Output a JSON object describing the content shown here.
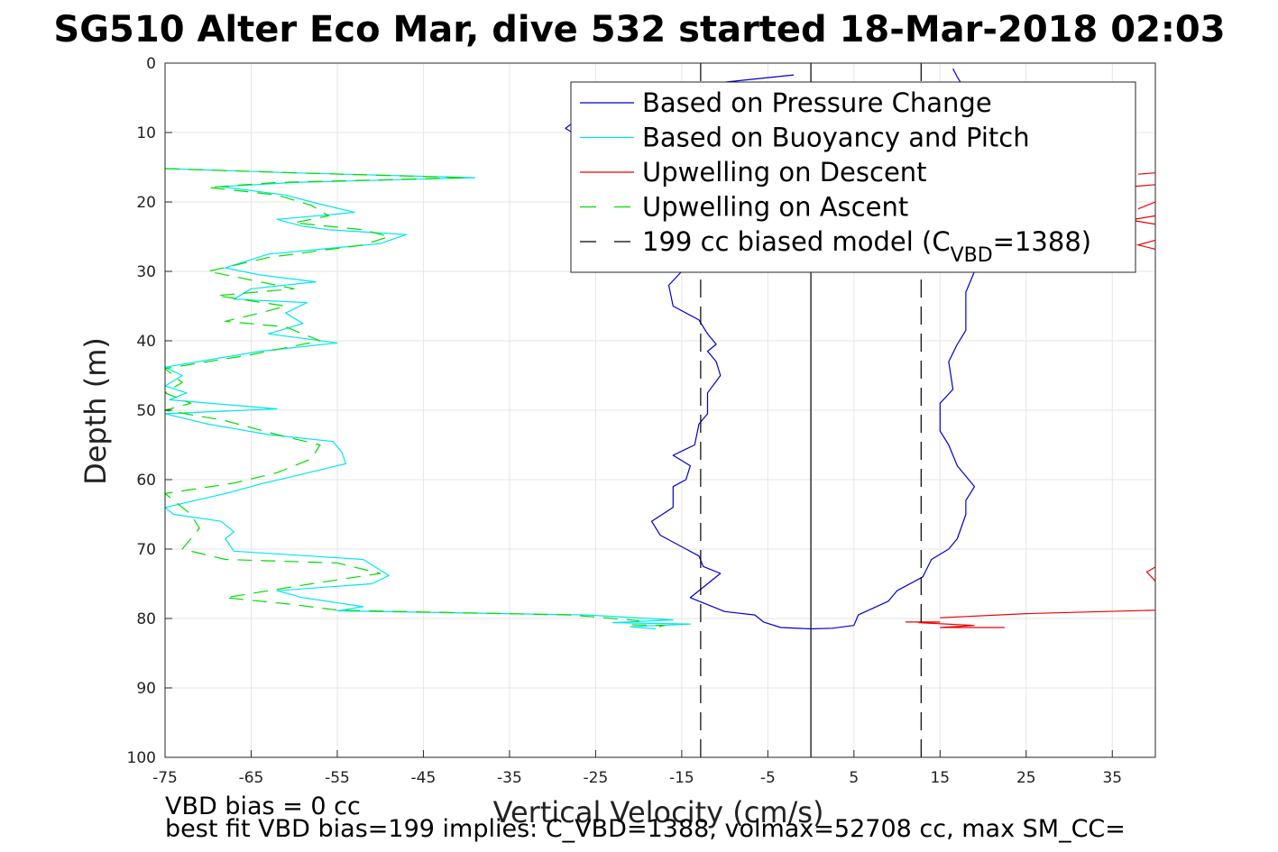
{
  "chart_data": {
    "type": "line",
    "title": "SG510 Alter Eco Mar, dive 532 started 18-Mar-2018 02:03",
    "xlabel": "Vertical Velocity (cm/s)",
    "ylabel": "Depth (m)",
    "xlim": [
      -75,
      40
    ],
    "ylim": [
      0,
      100
    ],
    "y_reversed": true,
    "grid": true,
    "legend_position": "top-right",
    "x_ticks": [
      -75,
      -65,
      -55,
      -45,
      -35,
      -25,
      -15,
      -5,
      5,
      15,
      25,
      35
    ],
    "y_ticks": [
      0,
      10,
      20,
      30,
      40,
      50,
      60,
      70,
      80,
      90,
      100
    ],
    "legend": [
      {
        "text": "Based on Pressure Change",
        "color": "#0000cc",
        "dash": "solid"
      },
      {
        "text": "Based on Buoyancy and Pitch",
        "color": "#00e5ee",
        "dash": "solid"
      },
      {
        "text": "Upwelling on Descent",
        "color": "#ee0000",
        "dash": "solid"
      },
      {
        "text": "Upwelling on Ascent",
        "color": "#00dd00",
        "dash": "dashed"
      },
      {
        "text": "199 cc biased model (C",
        "sub": "VBD",
        "suffix": "=1388)",
        "color": "#000000",
        "dash": "dashed"
      }
    ],
    "series": [
      {
        "name": "Based on Pressure Change",
        "color": "#0000cc",
        "dash": "solid",
        "points": [
          [
            -2,
            1.7
          ],
          [
            -12,
            3
          ],
          [
            -20,
            5
          ],
          [
            -26,
            7
          ],
          [
            -28.5,
            9.4
          ],
          [
            -25,
            12
          ],
          [
            -20,
            15
          ],
          [
            -16,
            22
          ],
          [
            -15,
            30
          ],
          [
            -16.5,
            32
          ],
          [
            -16,
            35
          ],
          [
            -13,
            37
          ],
          [
            -12,
            39
          ],
          [
            -11,
            40.5
          ],
          [
            -12,
            41.5
          ],
          [
            -11,
            43
          ],
          [
            -10.5,
            45
          ],
          [
            -12,
            47.5
          ],
          [
            -12,
            50.5
          ],
          [
            -13,
            52
          ],
          [
            -13.5,
            55
          ],
          [
            -16,
            56.5
          ],
          [
            -14,
            58
          ],
          [
            -14.5,
            60
          ],
          [
            -16,
            61
          ],
          [
            -16,
            64
          ],
          [
            -18.5,
            66
          ],
          [
            -17.5,
            68
          ],
          [
            -13,
            71
          ],
          [
            -12.5,
            72.5
          ],
          [
            -10.5,
            73.5
          ],
          [
            -14,
            77
          ],
          [
            -10,
            79
          ],
          [
            -6.5,
            79.5
          ],
          [
            -5.5,
            80.5
          ],
          [
            -3.5,
            81.3
          ],
          [
            0,
            81.5
          ],
          [
            2.5,
            81.4
          ],
          [
            5,
            81
          ],
          [
            5.5,
            79.5
          ],
          [
            9,
            77.5
          ],
          [
            10,
            76
          ],
          [
            13,
            74
          ],
          [
            14,
            71.5
          ],
          [
            16,
            70
          ],
          [
            17,
            68.5
          ],
          [
            18,
            65
          ],
          [
            18,
            63
          ],
          [
            19,
            61
          ],
          [
            17,
            58
          ],
          [
            16,
            55
          ],
          [
            15,
            53
          ],
          [
            15,
            49
          ],
          [
            16.5,
            47
          ],
          [
            16,
            43
          ],
          [
            17,
            40.5
          ],
          [
            18,
            38.5
          ],
          [
            18,
            33
          ],
          [
            19,
            30
          ],
          [
            18.5,
            28
          ],
          [
            18,
            25
          ],
          [
            17.5,
            20
          ],
          [
            17,
            15
          ],
          [
            18,
            10
          ],
          [
            18.5,
            5
          ],
          [
            17,
            2
          ],
          [
            16.5,
            0.8
          ]
        ]
      },
      {
        "name": "Based on Buoyancy and Pitch",
        "color": "#00e5ee",
        "dash": "solid",
        "points": [
          [
            -75,
            15.2
          ],
          [
            -60,
            15.8
          ],
          [
            -39,
            16.5
          ],
          [
            -60,
            17.2
          ],
          [
            -68.5,
            17.8
          ],
          [
            -61,
            19
          ],
          [
            -58,
            20
          ],
          [
            -53,
            21.5
          ],
          [
            -62,
            22.5
          ],
          [
            -59,
            23.5
          ],
          [
            -56,
            24
          ],
          [
            -47,
            24.7
          ],
          [
            -50,
            26
          ],
          [
            -63,
            27.5
          ],
          [
            -68,
            29.5
          ],
          [
            -64,
            30.5
          ],
          [
            -57.5,
            31.5
          ],
          [
            -65,
            32.5
          ],
          [
            -67,
            34
          ],
          [
            -58.5,
            34.5
          ],
          [
            -61,
            36
          ],
          [
            -59,
            37.5
          ],
          [
            -63,
            39
          ],
          [
            -55,
            40.3
          ],
          [
            -64,
            41.5
          ],
          [
            -75,
            43.8
          ],
          [
            -73,
            45
          ],
          [
            -75,
            46.5
          ],
          [
            -72.5,
            47.5
          ],
          [
            -74.5,
            48.5
          ],
          [
            -62,
            49.8
          ],
          [
            -75,
            50.5
          ],
          [
            -70,
            52
          ],
          [
            -63,
            53.5
          ],
          [
            -55.5,
            54.5
          ],
          [
            -54.5,
            56
          ],
          [
            -54,
            57.7
          ],
          [
            -60,
            59.5
          ],
          [
            -63.5,
            60.5
          ],
          [
            -68,
            62
          ],
          [
            -75,
            64
          ],
          [
            -74,
            65
          ],
          [
            -68.5,
            66
          ],
          [
            -67,
            67.5
          ],
          [
            -68,
            68.5
          ],
          [
            -67,
            70.3
          ],
          [
            -52,
            71.5
          ],
          [
            -49,
            73.8
          ],
          [
            -51,
            75
          ],
          [
            -62,
            76
          ],
          [
            -59,
            77
          ],
          [
            -52,
            78.3
          ],
          [
            -55,
            78.9
          ],
          [
            -26,
            79.5
          ],
          [
            -16,
            80.2
          ],
          [
            -23,
            80.6
          ],
          [
            -14,
            80.8
          ],
          [
            -21,
            81.2
          ],
          [
            -18,
            81.5
          ]
        ]
      },
      {
        "name": "Upwelling on Descent",
        "color": "#ee0000",
        "dash": "solid",
        "segments": [
          [
            [
              40,
              15.8
            ],
            [
              38,
              16
            ]
          ],
          [
            [
              40,
              17.5
            ],
            [
              37,
              17.8
            ]
          ],
          [
            [
              40,
              20
            ],
            [
              38,
              21
            ]
          ],
          [
            [
              40,
              22
            ],
            [
              37,
              22.6
            ],
            [
              40,
              23.2
            ]
          ],
          [
            [
              40,
              25.5
            ],
            [
              38,
              26.2
            ],
            [
              40,
              26.8
            ]
          ],
          [
            [
              40,
              72.6
            ],
            [
              39,
              73.3
            ],
            [
              40,
              74.6
            ]
          ],
          [
            [
              40,
              78.8
            ],
            [
              25,
              79.3
            ],
            [
              15,
              79.9
            ]
          ],
          [
            [
              11,
              80.5
            ],
            [
              15,
              80.5
            ],
            [
              12.5,
              80.6
            ],
            [
              19,
              81
            ],
            [
              15,
              81.3
            ],
            [
              22.5,
              81.3
            ]
          ]
        ]
      },
      {
        "name": "Upwelling on Ascent",
        "color": "#00dd00",
        "dash": "dashed",
        "points": [
          [
            -75,
            15.2
          ],
          [
            -60,
            15.8
          ],
          [
            -40,
            16.5
          ],
          [
            -62,
            17.2
          ],
          [
            -70,
            17.9
          ],
          [
            -62,
            19
          ],
          [
            -58,
            20.5
          ],
          [
            -56,
            22
          ],
          [
            -60,
            23
          ],
          [
            -52,
            24
          ],
          [
            -49,
            25
          ],
          [
            -52,
            26.2
          ],
          [
            -63,
            28
          ],
          [
            -70,
            30
          ],
          [
            -66,
            31
          ],
          [
            -60,
            32.5
          ],
          [
            -69,
            33.5
          ],
          [
            -61,
            35
          ],
          [
            -64,
            36
          ],
          [
            -68,
            37.2
          ],
          [
            -61,
            38
          ],
          [
            -57,
            40
          ],
          [
            -65,
            42
          ],
          [
            -75,
            44
          ],
          [
            -73,
            46
          ],
          [
            -75,
            47.5
          ],
          [
            -72,
            49
          ],
          [
            -75,
            50
          ],
          [
            -68,
            51.5
          ],
          [
            -62,
            53.5
          ],
          [
            -57,
            55
          ],
          [
            -58,
            57
          ],
          [
            -62,
            59
          ],
          [
            -67,
            60.5
          ],
          [
            -75,
            62
          ],
          [
            -72,
            65
          ],
          [
            -71,
            67
          ],
          [
            -73,
            70
          ],
          [
            -68,
            71.5
          ],
          [
            -55,
            72
          ],
          [
            -50,
            73.5
          ],
          [
            -58,
            75
          ],
          [
            -68,
            77
          ],
          [
            -60,
            78
          ],
          [
            -55,
            78.8
          ],
          [
            -28,
            79.5
          ],
          [
            -20,
            80.3
          ],
          [
            -21,
            80.9
          ],
          [
            -17,
            81
          ],
          [
            -18,
            81.3
          ]
        ]
      },
      {
        "name": "199 cc biased model (C_VBD=1388)",
        "color": "#000000",
        "dash": "dashed",
        "vertical_lines": [
          -12.8,
          12.8
        ]
      }
    ],
    "reference_lines": [
      {
        "x": 0,
        "color": "#000000",
        "dash": "solid"
      }
    ],
    "annotations": [
      "VBD bias = 0 cc",
      "best fit VBD bias=199 implies: C_VBD=1388, volmax=52708 cc, max SM_CC="
    ]
  }
}
